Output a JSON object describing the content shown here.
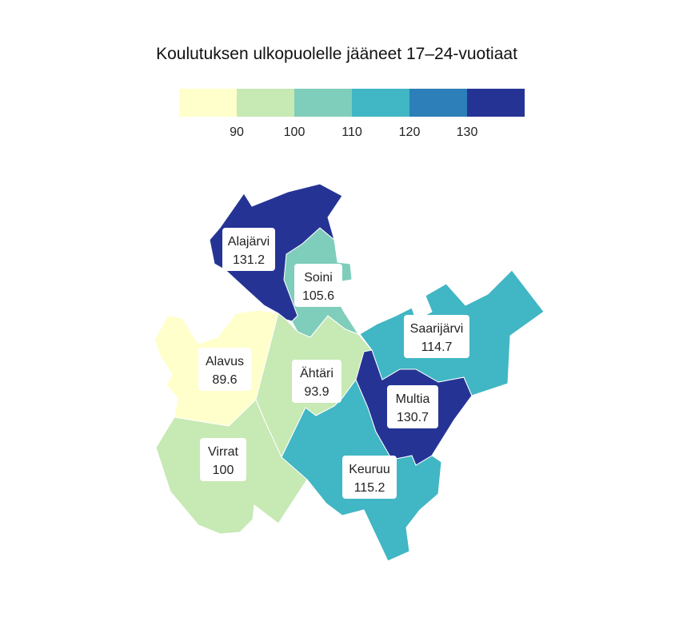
{
  "title": "Koulutuksen ulkopuolelle jääneet 17–24-vuotiaat",
  "legend": {
    "bins": [
      {
        "color": "#ffffcc"
      },
      {
        "color": "#c7e9b4"
      },
      {
        "color": "#7fcdbb"
      },
      {
        "color": "#41b6c4"
      },
      {
        "color": "#2c7fb8"
      },
      {
        "color": "#253494"
      }
    ],
    "breaks": [
      90,
      100,
      110,
      120,
      130
    ]
  },
  "regions": [
    {
      "name": "Alajärvi",
      "value": "131.2",
      "color": "#253494"
    },
    {
      "name": "Soini",
      "value": "105.6",
      "color": "#7fcdbb"
    },
    {
      "name": "Saarijärvi",
      "value": "114.7",
      "color": "#41b6c4"
    },
    {
      "name": "Alavus",
      "value": "89.6",
      "color": "#ffffcc"
    },
    {
      "name": "Ähtäri",
      "value": "93.9",
      "color": "#c7e9b4"
    },
    {
      "name": "Multia",
      "value": "130.7",
      "color": "#253494"
    },
    {
      "name": "Virrat",
      "value": "100",
      "color": "#c7e9b4"
    },
    {
      "name": "Keuruu",
      "value": "115.2",
      "color": "#41b6c4"
    }
  ]
}
